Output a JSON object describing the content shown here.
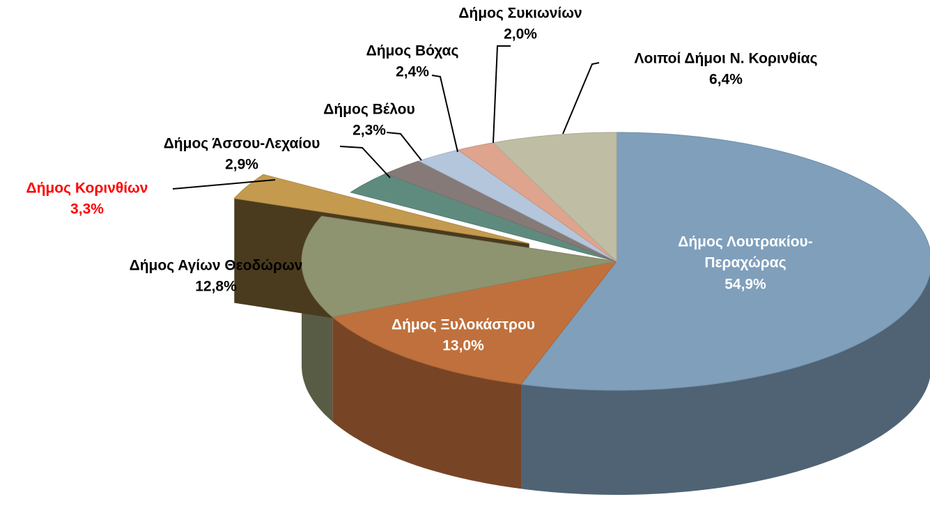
{
  "chart_data": {
    "type": "pie3d",
    "categories": [
      "Δήμος Λουτρακίου-Περαχώρας",
      "Δήμος Ξυλοκάστρου",
      "Δήμος Αγίων Θεοδώρων",
      "Δήμος Κορινθίων",
      "Δήμος Άσσου-Λεχαίου",
      "Δήμος Βέλου",
      "Δήμος Βόχας",
      "Δήμος Συκιωνίων",
      "Λοιποί Δήμοι Ν. Κορινθίας"
    ],
    "values": [
      54.9,
      13.0,
      12.8,
      3.3,
      2.9,
      2.3,
      2.4,
      2.0,
      6.4
    ],
    "value_labels": [
      "54,9%",
      "13,0%",
      "12,8%",
      "3,3%",
      "2,9%",
      "2,3%",
      "2,4%",
      "2,0%",
      "6,4%"
    ],
    "colors": [
      "#7f9fbb",
      "#c0703c",
      "#8f9470",
      "#c49a4f",
      "#5f8b7f",
      "#857a78",
      "#b4c6dc",
      "#dea48d",
      "#bfbea4"
    ],
    "label_colors": [
      "#ffffff",
      "#ffffff",
      "#000000",
      "#ff0000",
      "#000000",
      "#000000",
      "#000000",
      "#000000",
      "#000000"
    ],
    "exploded": "Δήμος Κορινθίων"
  }
}
